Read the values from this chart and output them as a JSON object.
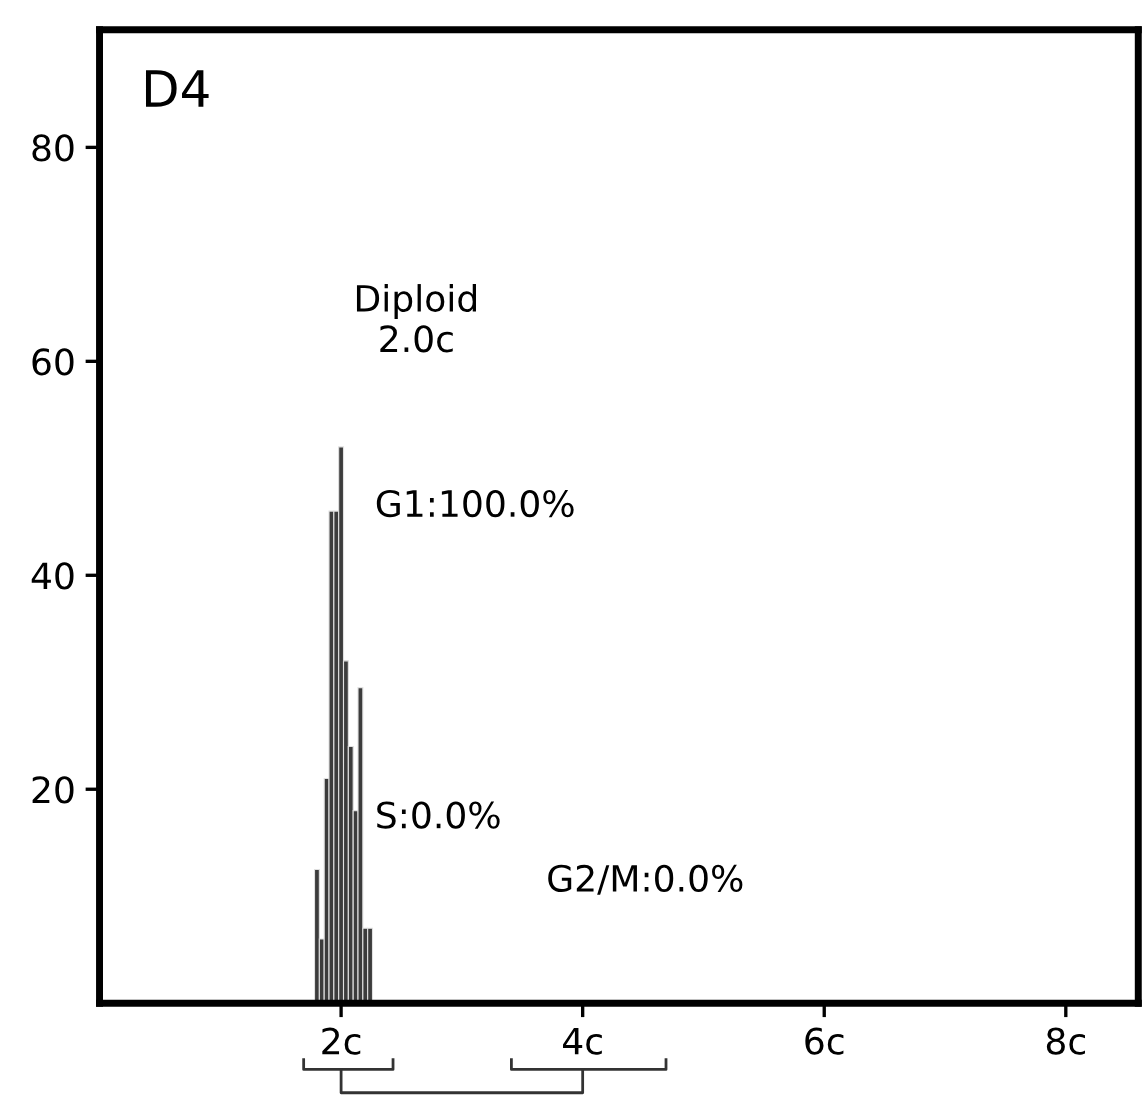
{
  "chart_data": {
    "type": "histogram",
    "title": "D4",
    "bins": [
      1.78,
      1.82,
      1.86,
      1.9,
      1.94,
      1.98,
      2.02,
      2.06,
      2.1,
      2.14,
      2.18,
      2.22,
      2.26
    ],
    "values": [
      12.5,
      6,
      21,
      46,
      46,
      52,
      32,
      24,
      18,
      29.5,
      7,
      7
    ],
    "color": "#3c3c3c",
    "xlim": [
      0,
      8.6
    ],
    "ylim": [
      0,
      91
    ],
    "xticks": [
      {
        "value": 2,
        "label": "2c"
      },
      {
        "value": 4,
        "label": "4c"
      },
      {
        "value": 6,
        "label": "6c"
      },
      {
        "value": 8,
        "label": "8c"
      }
    ],
    "yticks": [
      20,
      40,
      60,
      80
    ],
    "grid": false,
    "legend": false,
    "annotations": [
      "Diploid\n2.0c",
      "G1:100.0%",
      "S:0.0%",
      "G2/M:0.0%"
    ]
  }
}
